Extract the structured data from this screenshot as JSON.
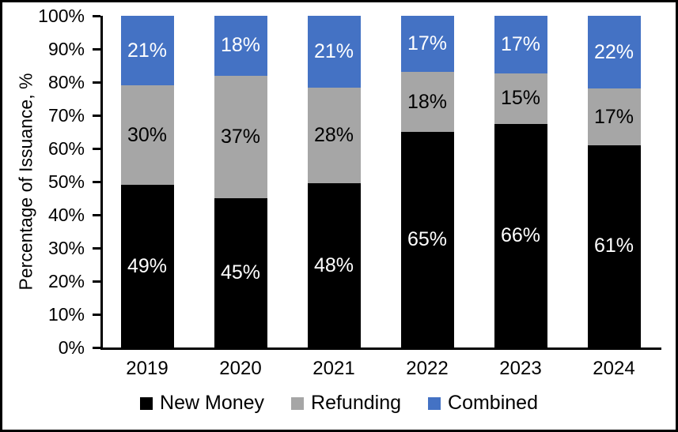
{
  "chart_data": {
    "type": "bar",
    "stacked": true,
    "title": "",
    "ylabel": "Percentage of Issuance, %",
    "xlabel": "",
    "categories": [
      "2019",
      "2020",
      "2021",
      "2022",
      "2023",
      "2024"
    ],
    "series": [
      {
        "name": "New Money",
        "color": "#000000",
        "label_color": "#FFFFFF",
        "values": [
          49,
          45,
          48,
          65,
          66,
          61
        ],
        "labels": [
          "49%",
          "45%",
          "48%",
          "65%",
          "66%",
          "61%"
        ]
      },
      {
        "name": "Refunding",
        "color": "#A6A6A6",
        "label_color": "#000000",
        "values": [
          30,
          37,
          28,
          18,
          15,
          17
        ],
        "labels": [
          "30%",
          "37%",
          "28%",
          "18%",
          "15%",
          "17%"
        ]
      },
      {
        "name": "Combined",
        "color": "#4472C4",
        "label_color": "#FFFFFF",
        "values": [
          21,
          18,
          21,
          17,
          17,
          22
        ],
        "labels": [
          "21%",
          "18%",
          "21%",
          "17%",
          "17%",
          "22%"
        ]
      }
    ],
    "ylim": [
      0,
      100
    ],
    "y_ticks": [
      0,
      10,
      20,
      30,
      40,
      50,
      60,
      70,
      80,
      90,
      100
    ],
    "y_tick_labels": [
      "0%",
      "10%",
      "20%",
      "30%",
      "40%",
      "50%",
      "60%",
      "70%",
      "80%",
      "90%",
      "100%"
    ],
    "grid": false,
    "legend_position": "bottom"
  }
}
